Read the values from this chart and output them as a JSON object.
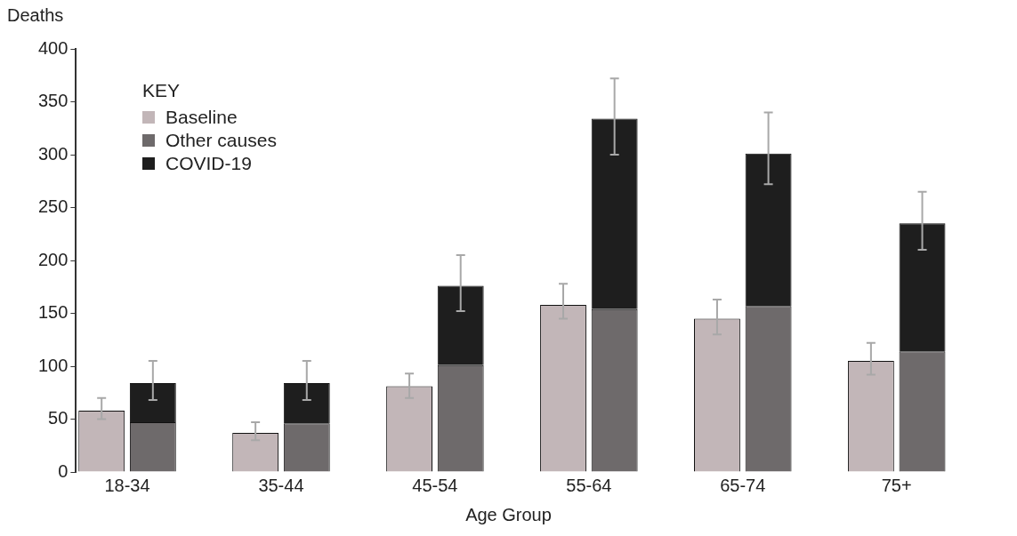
{
  "chart_data": {
    "type": "bar",
    "xlabel": "Age Group",
    "ylabel": "Deaths",
    "legend_title": "KEY",
    "categories": [
      "18-34",
      null,
      null,
      "35-44",
      null,
      null,
      "45-54",
      null,
      null,
      "55-64",
      null,
      null,
      "65-74",
      null,
      null,
      "75+",
      null,
      null
    ],
    "stacked": true,
    "series": [
      {
        "name": "Baseline",
        "color": "#c2b6b8",
        "values": [
          58,
          null,
          null,
          37,
          null,
          null,
          81,
          null,
          null,
          158,
          null,
          null,
          145,
          null,
          null,
          105,
          null,
          null
        ],
        "errors": [
          [
            50,
            70
          ],
          null,
          null,
          [
            30,
            47
          ],
          null,
          null,
          [
            70,
            93
          ],
          null,
          null,
          [
            145,
            178
          ],
          null,
          null,
          [
            130,
            163
          ],
          null,
          null,
          [
            92,
            122
          ],
          null,
          null
        ]
      },
      {
        "name": "Other causes",
        "color": "#6e6a6b",
        "values": [
          null,
          47,
          null,
          null,
          46,
          null,
          null,
          101,
          null,
          null,
          154,
          null,
          null,
          157,
          null,
          null,
          114,
          null
        ]
      },
      {
        "name": "COVID-19",
        "color": "#1e1e1e",
        "values": [
          null,
          37,
          null,
          null,
          38,
          null,
          null,
          75,
          null,
          null,
          180,
          null,
          null,
          144,
          null,
          null,
          121,
          null
        ],
        "errors": [
          null,
          [
            68,
            105
          ],
          null,
          null,
          [
            68,
            105
          ],
          null,
          null,
          [
            152,
            205
          ],
          null,
          null,
          [
            300,
            372
          ],
          null,
          null,
          [
            272,
            340
          ],
          null,
          null,
          [
            210,
            265
          ],
          null
        ]
      }
    ],
    "ylim": [
      0,
      400
    ],
    "yticks": [
      0,
      50,
      100,
      150,
      200,
      250,
      300,
      350,
      400
    ],
    "grid": false,
    "legend": "top left"
  }
}
